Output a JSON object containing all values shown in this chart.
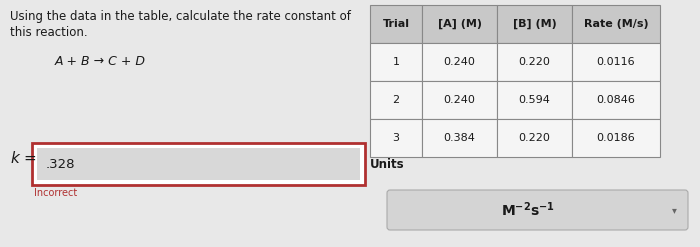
{
  "title_line1": "Using the data in the table, calculate the rate constant of",
  "title_line2": "this reaction.",
  "reaction": "A + B → C + D",
  "table_headers": [
    "Trial",
    "[A] (M)",
    "[B] (M)",
    "Rate (M/s)"
  ],
  "table_data": [
    [
      "1",
      "0.240",
      "0.220",
      "0.0116"
    ],
    [
      "2",
      "0.240",
      "0.594",
      "0.0846"
    ],
    [
      "3",
      "0.384",
      "0.220",
      "0.0186"
    ]
  ],
  "k_value": ".328",
  "units_label": "Units",
  "incorrect_label": "Incorrect",
  "bg_color": "#e8e8e8",
  "white": "#ffffff",
  "input_border_color": "#b03030",
  "inner_box_color": "#d8d8d8",
  "units_box_color": "#d4d4d4",
  "table_header_bg": "#c8c8c8",
  "table_cell_bg": "#f5f5f5",
  "table_border": "#888888",
  "incorrect_color": "#b03030",
  "text_color": "#1a1a1a"
}
